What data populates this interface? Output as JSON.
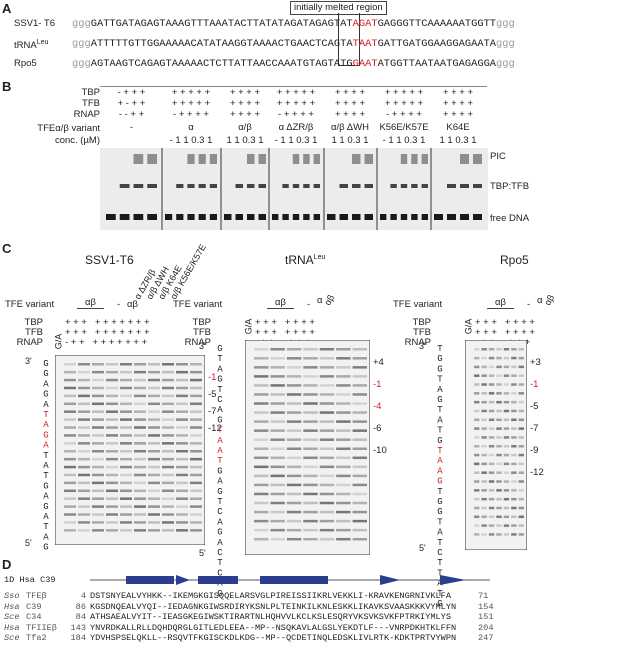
{
  "panel_a": {
    "label": "A",
    "region_label": "initially melted region",
    "sequences": [
      {
        "name": "SSV1- T6",
        "flank_left": "ggg",
        "before": "GATTGATAGAGTAAAGTTTAAATACTTATATAGATAGAGTAT",
        "melted": "AGAT",
        "after": "GAGGGTTCAAAAAATGGTT",
        "flank_right": "ggg"
      },
      {
        "name": "tRNA",
        "name_sup": "Leu",
        "flank_left": "ggg",
        "before": "ATTTTTGTTGGAAAAACATATAAGGTAAAACTGAACTCAGTA",
        "melted": "TAAT",
        "after": "GATTGATGGAAGGAGAATA",
        "flank_right": "ggg"
      },
      {
        "name": "Rpo5",
        "flank_left": "ggg",
        "before": "AGTAAGTCAGAGTAAAAACTCTTATTAACCAAATGTAGTATG",
        "melted": "GAAT",
        "after": "ATGGTTAATAATGAGAGGA",
        "flank_right": "ggg"
      }
    ]
  },
  "panel_b": {
    "label": "B",
    "row_labels": {
      "tbp": "TBP",
      "tfb": "TFB",
      "rnap": "RNAP",
      "variant": "TFEα/β variant",
      "conc": "conc. (µM)"
    },
    "groups": [
      {
        "tbp": "- + + +",
        "tfb": "+ - + +",
        "rnap": "- - + +",
        "variant": "-"
      },
      {
        "tbp": "+ + + + +",
        "tfb": "+ + + + +",
        "rnap": "- + + + +",
        "variant": "α",
        "conc": "- 1 1 0.3 1"
      },
      {
        "tbp": "+ + + +",
        "tfb": "+ + + +",
        "rnap": "+ + + +",
        "variant": "α/β",
        "conc": "1 1 0.3 1"
      },
      {
        "tbp": "+ + + + +",
        "tfb": "+ + + + +",
        "rnap": "- + + + +",
        "variant": "α ΔZR/β",
        "conc": "- 1 1 0.3 1"
      },
      {
        "tbp": "+ + + +",
        "tfb": "+ + + +",
        "rnap": "+ + + +",
        "variant": "α/β ΔWH",
        "conc": "1 1 0.3 1"
      },
      {
        "tbp": "+ + + + +",
        "tfb": "+ + + + +",
        "rnap": "- + + + +",
        "variant": "K56E/K57E",
        "conc": "- 1 1 0.3 1"
      },
      {
        "tbp": "+ + + +",
        "tfb": "+ + + +",
        "rnap": "+ + + +",
        "variant": "K64E",
        "conc": "1 1 0.3 1"
      }
    ],
    "band_labels": {
      "pic": "PIC",
      "tbp_tfb": "TBP:TFB",
      "free_dna": "free DNA"
    }
  },
  "panel_c": {
    "label": "C",
    "subpanels": [
      {
        "title": "SSV1-T6",
        "tfe_variant_label": "TFE variant",
        "group_label": "αβ",
        "minus_label": "-",
        "single_label": "αβ",
        "rotated_labels": [
          "α ΔZR/β",
          "α/β ΔWH",
          "α/β K64E",
          "α/β K56E/K57E"
        ],
        "row_labels": [
          "TBP",
          "TFB",
          "RNAP"
        ],
        "ga_label": "G/A",
        "signs": [
          "+ + +   + + + + + + +",
          "+ + +   + + + + + + +",
          "- + +   + + + + + + +"
        ],
        "three_prime": "3'",
        "five_prime": "5'",
        "seq_before": "GGAGA",
        "seq_red": "TAGA",
        "seq_after": "TATGAGATAG",
        "markers": [
          {
            "label": "-1",
            "color": "#d0202a"
          },
          {
            "label": "-5",
            "color": "#222222"
          },
          {
            "label": "-7",
            "color": "#222222"
          },
          {
            "label": "-12",
            "color": "#222222"
          }
        ]
      },
      {
        "title": "tRNA",
        "title_sup": "Leu",
        "tfe_variant_label": "TFE variant",
        "group_label": "αβ",
        "minus_label": "-",
        "single_label": "α",
        "rotated_labels": [
          "αβ"
        ],
        "row_labels": [
          "TBP",
          "TFB",
          "RNAP"
        ],
        "ga_label": "G/A",
        "signs": [
          "+ + +   + + + +",
          "+ + +   + + + +",
          "- + +   - + + +"
        ],
        "three_prime": "3'",
        "five_prime": "5'",
        "seq_before": "GTAGTCAG",
        "seq_red": "TAAT",
        "seq_after": "GAGTCAGACTCAG",
        "markers": [
          {
            "label": "+4",
            "color": "#222222"
          },
          {
            "label": "-1",
            "color": "#d0202a"
          },
          {
            "label": "-4",
            "color": "#d0202a"
          },
          {
            "label": "-6",
            "color": "#222222"
          },
          {
            "label": "-10",
            "color": "#222222"
          }
        ]
      },
      {
        "title": "Rpo5",
        "tfe_variant_label": "TFE variant",
        "group_label": "αβ",
        "minus_label": "-",
        "single_label": "α",
        "rotated_labels": [
          "αβ"
        ],
        "row_labels": [
          "TBP",
          "TFB",
          "RNAP"
        ],
        "ga_label": "G/A",
        "signs": [
          "+ + +   + + + +",
          "+ + +   + + + +",
          "- + +   - + + +"
        ],
        "three_prime": "3'",
        "five_prime": "5'",
        "seq_before": "TGGTAGTATG",
        "seq_red": "TAAG",
        "seq_after": "TGGTATCTTATG",
        "markers": [
          {
            "label": "+3",
            "color": "#222222"
          },
          {
            "label": "-1",
            "color": "#d0202a"
          },
          {
            "label": "-5",
            "color": "#222222"
          },
          {
            "label": "-7",
            "color": "#222222"
          },
          {
            "label": "-9",
            "color": "#222222"
          },
          {
            "label": "-12",
            "color": "#222222"
          }
        ]
      }
    ]
  },
  "panel_d": {
    "label": "D",
    "structure_label": "1D Hsa C39",
    "rows": [
      {
        "species": "Sso",
        "protein": "TFEβ",
        "start": 4,
        "sequence": "DSTSNYEALVYHKK--IKEMGKGISQQELARSVGLPIREISSIIKRLVEKKLI-KRAVKENGRNIVKLFA",
        "end": 71
      },
      {
        "species": "Hsa",
        "protein": "C39",
        "start": 86,
        "sequence": "KGSDNQEALVYQI--IEDAGNKGIWSRDIRYKSNLPLTEINKILKNLESKKLIKAVKSVAASKKKVYMLYN",
        "end": 154
      },
      {
        "species": "Sce",
        "protein": "C34",
        "start": 84,
        "sequence": "ATHSAEALVYIT--IEASGKEGIWSKTIRARTNLHQHVVLKCLKSLESQRYVKSVKSVKFPTRKIYMLYS",
        "end": 151
      },
      {
        "species": "Hsa",
        "protein": "TFIIEβ",
        "start": 143,
        "sequence": "YNVRDKALLRLLDQHDQRGLGITLEDLEEA--MP--NSQKAVLALGSLYEKDTLF---VNRPDKHTKLFFN",
        "end": 204
      },
      {
        "species": "Sce",
        "protein": "Tfa2",
        "start": 184,
        "sequence": "YDVHSPSELQKLL--RSQVTFKGISCKDLKDG--MP--QCDETINQLEDSKLIVLRTK-KDKTPRTVYWPN",
        "end": 247
      }
    ]
  }
}
